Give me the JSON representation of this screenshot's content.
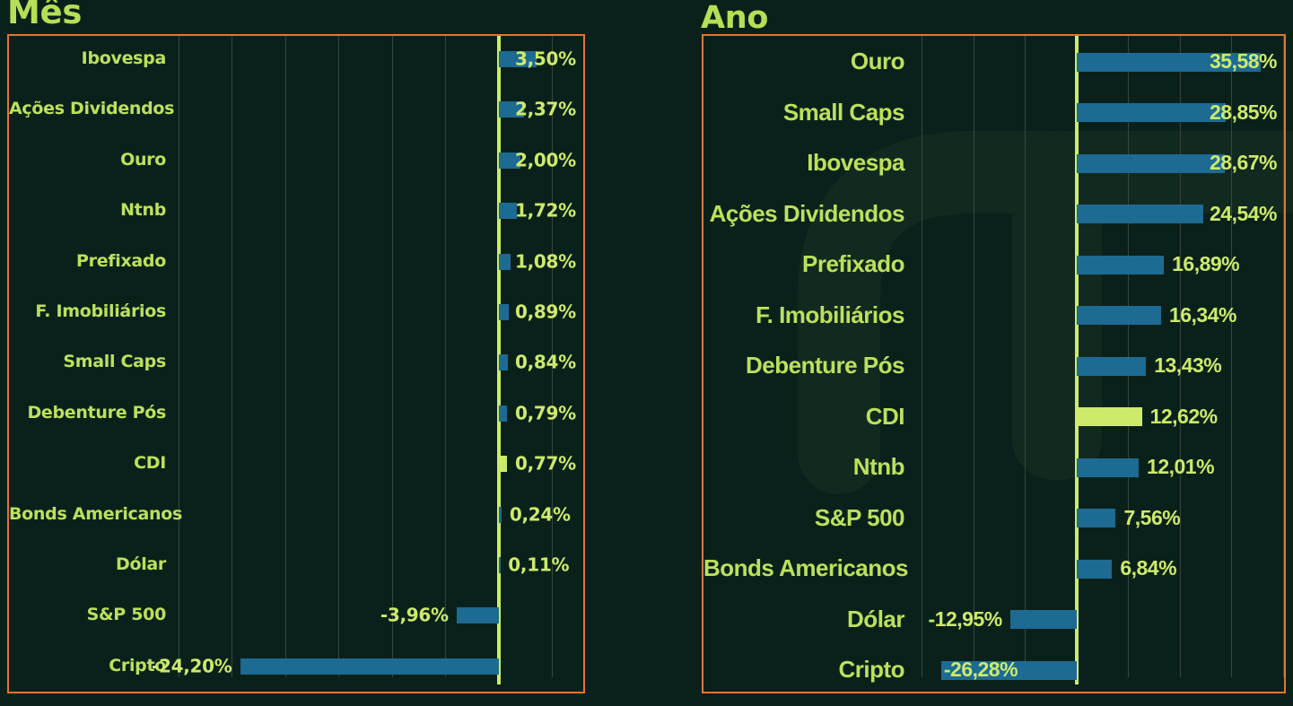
{
  "colors": {
    "background": "#0A211B",
    "bar_blue": "#1D6A93",
    "accent_lime": "#CDEA6B",
    "label_green": "#BCE05C",
    "title_green": "#B7DE57",
    "panel_border_orange": "#DD7732",
    "gridline": "#39453E",
    "watermark": "#12291F"
  },
  "chart_data": [
    {
      "type": "bar",
      "orientation": "horizontal",
      "title": "Mês",
      "unit": "%",
      "decimal_separator": ",",
      "highlight_category": "CDI",
      "highlight_index": 8,
      "x_grid": {
        "min": -30,
        "max": 5,
        "step": 5
      },
      "categories": [
        "Ibovespa",
        "Ações Dividendos",
        "Ouro",
        "Ntnb",
        "Prefixado",
        "F. Imobiliários",
        "Small Caps",
        "Debenture Pós",
        "CDI",
        "Bonds Americanos",
        "Dólar",
        "S&P 500",
        "Cripto"
      ],
      "values": [
        3.5,
        2.37,
        2.0,
        1.72,
        1.08,
        0.89,
        0.84,
        0.79,
        0.77,
        0.24,
        0.11,
        -3.96,
        -24.2
      ],
      "value_labels": [
        "3,50%",
        "2,37%",
        "2,00%",
        "1,72%",
        "1,08%",
        "0,89%",
        "0,84%",
        "0,79%",
        "0,77%",
        "0,24%",
        "0,11%",
        "-3,96%",
        "-24,20%"
      ]
    },
    {
      "type": "bar",
      "orientation": "horizontal",
      "title": "Ano",
      "unit": "%",
      "decimal_separator": ",",
      "highlight_category": "CDI",
      "highlight_index": 7,
      "x_grid": {
        "min": -30,
        "max": 40,
        "step": 10
      },
      "categories": [
        "Ouro",
        "Small Caps",
        "Ibovespa",
        "Ações Dividendos",
        "Prefixado",
        "F. Imobiliários",
        "Debenture Pós",
        "CDI",
        "Ntnb",
        "S&P 500",
        "Bonds Americanos",
        "Dólar",
        "Cripto"
      ],
      "values": [
        35.58,
        28.85,
        28.67,
        24.54,
        16.89,
        16.34,
        13.43,
        12.62,
        12.01,
        7.56,
        6.84,
        -12.95,
        -26.28
      ],
      "value_labels": [
        "35,58%",
        "28,85%",
        "28,67%",
        "24,54%",
        "16,89%",
        "16,34%",
        "13,43%",
        "12,62%",
        "12,01%",
        "7,56%",
        "6,84%",
        "-12,95%",
        "-26,28%"
      ]
    }
  ]
}
